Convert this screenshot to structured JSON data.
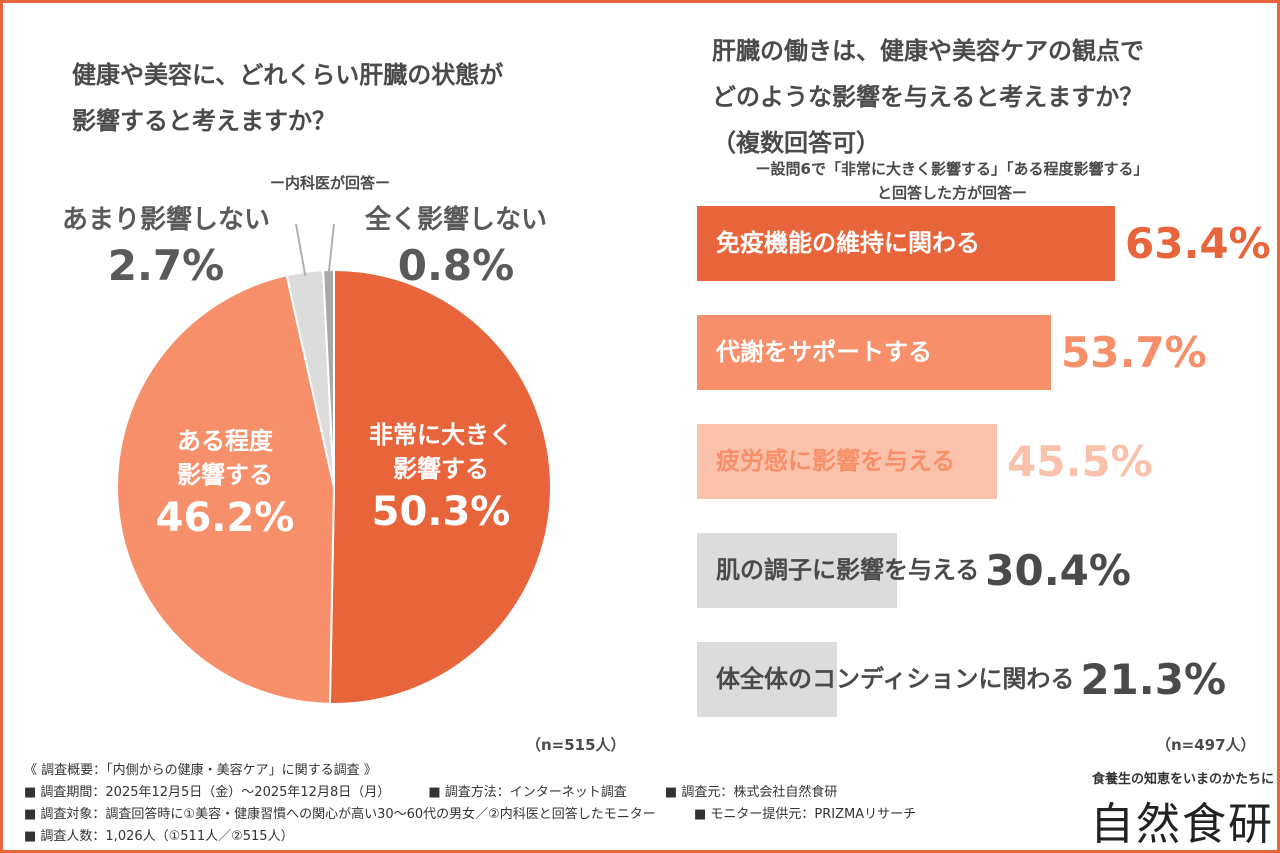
{
  "left_panel": {
    "title_lines": [
      "健康や美容に、どれくらい肝臓の状態が",
      "影響すると考えますか？"
    ],
    "subtitle": "ー内科医が回答ー",
    "n_label": "（n=515人）"
  },
  "right_panel": {
    "title_lines": [
      "肝臓の働きは、健康や美容ケアの観点で",
      "どのような影響を与えると考えますか？",
      "（複数回答可）"
    ],
    "subtitle_lines": [
      "ー設問6で「非常に大きく影響する」「ある程度影響する」",
      "と回答した方が回答ー"
    ],
    "n_label": "（n=497人）"
  },
  "footer": {
    "line1": "《 調査概要：「内側からの健康・美容ケア」に関する調査 》",
    "line2": [
      "■ 調査期間：2025年12月5日（金）〜2025年12月8日（月）",
      "■ 調査方法：インターネット調査",
      "■ 調査元：株式会社自然食研"
    ],
    "line3": [
      "■ 調査対象：調査回答時に①美容・健康習慣への関心が高い30〜60代の男女／②内科医と回答したモニター",
      "■ モニター提供元：PRIZMAリサーチ"
    ],
    "line4": "■ 調査人数：1,026人（①511人／②515人）",
    "brand_tagline": "食養生の知恵をいまのかたちに",
    "brand_name": "自然食研"
  },
  "chart_data": [
    {
      "type": "pie",
      "slices": [
        {
          "label_lines": [
            "非常に大きく",
            "影響する"
          ],
          "value": 50.3,
          "value_label": "50.3%",
          "color": "#e8643a",
          "label_color": "#ffffff"
        },
        {
          "label_lines": [
            "ある程度",
            "影響する"
          ],
          "value": 46.2,
          "value_label": "46.2%",
          "color": "#f7906a",
          "label_color": "#ffffff"
        },
        {
          "label_lines": [
            "あまり影響しない"
          ],
          "value": 2.7,
          "value_label": "2.7%",
          "color": "#dcdcdc",
          "label_color": "#5a5a5a"
        },
        {
          "label_lines": [
            "全く影響しない"
          ],
          "value": 0.8,
          "value_label": "0.8%",
          "color": "#a9a9a9",
          "label_color": "#5a5a5a"
        }
      ],
      "start": "12 o'clock",
      "direction": "clockwise"
    },
    {
      "type": "bar",
      "orientation": "horizontal",
      "categories": [
        "免疫機能の維持に関わる",
        "代謝をサポートする",
        "疲労感に影響を与える",
        "肌の調子に影響を与える",
        "体全体のコンディションに関わる"
      ],
      "values": [
        63.4,
        53.7,
        45.5,
        30.4,
        21.3
      ],
      "value_labels": [
        "63.4%",
        "53.7%",
        "45.5%",
        "30.4%",
        "21.3%"
      ],
      "bar_colors": [
        "#e8643a",
        "#f7906a",
        "#fbc2ab",
        "#dcdcdc",
        "#dcdcdc"
      ],
      "label_colors": [
        "#ffffff",
        "#ffffff",
        "#f7906a",
        "#4a4a4a",
        "#4a4a4a"
      ],
      "value_colors": [
        "#e8643a",
        "#f7906a",
        "#fbc2ab",
        "#4a4a4a",
        "#4a4a4a"
      ],
      "xlim": [
        0,
        100
      ]
    }
  ]
}
